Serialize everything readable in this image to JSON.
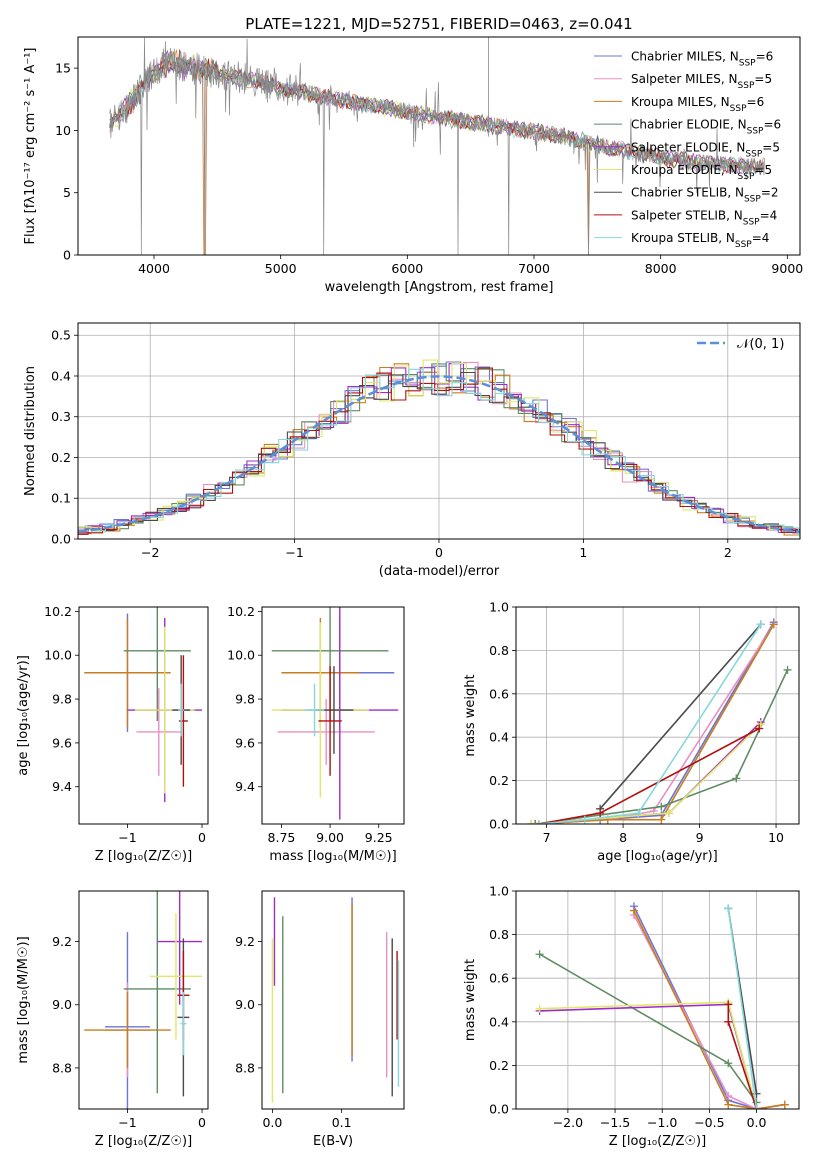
{
  "figure_title": "PLATE=1221, MJD=52751, FIBERID=0463, z=0.041",
  "colors": {
    "Chabrier MILES": "#6a75d8",
    "Salpeter MILES": "#ea8fc2",
    "Kroupa MILES": "#c87e1e",
    "Chabrier ELODIE": "#5f8c63",
    "Salpeter ELODIE": "#a02cc8",
    "Kroupa ELODIE": "#dfe86a",
    "Chabrier STELIB": "#4a4a4a",
    "Salpeter STELIB": "#b01010",
    "Kroupa STELIB": "#86d8de",
    "data": "#888888",
    "normal": "#5b8fd8"
  },
  "chart_data": [
    {
      "id": "spectrum",
      "type": "line",
      "xlabel": "wavelength [Angstrom, rest frame]",
      "ylabel": "Flux [fλ10⁻¹⁷ erg cm⁻² s⁻¹ A⁻¹]",
      "xlim": [
        3400,
        9100
      ],
      "ylim": [
        0,
        17.5
      ],
      "xticks": [
        4000,
        5000,
        6000,
        7000,
        8000,
        9000
      ],
      "yticks": [
        0,
        5,
        10,
        15
      ],
      "legend_position": "upper-right",
      "legend": [
        {
          "name": "Chabrier MILES",
          "nssp": "6"
        },
        {
          "name": "Salpeter MILES",
          "nssp": "5"
        },
        {
          "name": "Kroupa MILES",
          "nssp": "6"
        },
        {
          "name": "Chabrier ELODIE",
          "nssp": "6"
        },
        {
          "name": "Salpeter ELODIE",
          "nssp": "5"
        },
        {
          "name": "Kroupa ELODIE",
          "nssp": "5"
        },
        {
          "name": "Chabrier STELIB",
          "nssp": "2"
        },
        {
          "name": "Salpeter STELIB",
          "nssp": "4"
        },
        {
          "name": "Kroupa STELIB",
          "nssp": "4"
        }
      ],
      "continuum": {
        "x": [
          3650,
          3800,
          3950,
          4100,
          4300,
          4500,
          4800,
          5000,
          5300,
          5600,
          6000,
          6400,
          6800,
          7200,
          7600,
          8000,
          8400,
          8800
        ],
        "y": [
          10.5,
          12.0,
          14.2,
          15.5,
          15.0,
          14.6,
          14.0,
          13.4,
          12.8,
          12.2,
          11.5,
          10.8,
          10.2,
          9.6,
          8.6,
          7.8,
          7.3,
          7.1
        ]
      },
      "dips": [
        [
          3900,
          0
        ],
        [
          4400,
          0
        ],
        [
          5340,
          0
        ],
        [
          6400,
          0
        ],
        [
          6800,
          0
        ],
        [
          7430,
          0
        ]
      ]
    },
    {
      "id": "residuals",
      "type": "histogram",
      "xlabel": "(data-model)/error",
      "ylabel": "Normed distribution",
      "xlim": [
        -2.5,
        2.5
      ],
      "ylim": [
        0,
        0.53
      ],
      "xticks": [
        -2,
        -1,
        0,
        1,
        2
      ],
      "yticks": [
        0.0,
        0.1,
        0.2,
        0.3,
        0.4,
        0.5
      ],
      "normal_label": "𝒩(0, 1)",
      "bin_width": 0.1
    },
    {
      "id": "z_vs_age",
      "type": "errorbar",
      "xlabel": "Z [log₁₀(Z/Z☉)]",
      "ylabel": "age  [log₁₀(age/yr)]",
      "xlim": [
        -1.65,
        0.08
      ],
      "ylim": [
        9.23,
        10.22
      ],
      "xticks": [
        -1,
        0
      ],
      "yticks": [
        9.4,
        9.6,
        9.8,
        10.0,
        10.2
      ],
      "points": [
        {
          "m": "Chabrier MILES",
          "x": -1.0,
          "y": 9.92,
          "xe": 0.5,
          "ye": 0.27
        },
        {
          "m": "Salpeter MILES",
          "x": -0.58,
          "y": 9.65,
          "xe": 0.3,
          "ye": 0.2
        },
        {
          "m": "Kroupa MILES",
          "x": -1.0,
          "y": 9.92,
          "xe": 0.58,
          "ye": 0.25
        },
        {
          "m": "Chabrier ELODIE",
          "x": -0.6,
          "y": 10.02,
          "xe": 0.45,
          "ye": 0.32
        },
        {
          "m": "Salpeter ELODIE",
          "x": -0.5,
          "y": 9.75,
          "xe": 0.5,
          "ye": 0.42
        },
        {
          "m": "Kroupa ELODIE",
          "x": -0.5,
          "y": 9.75,
          "xe": 0.4,
          "ye": 0.38
        },
        {
          "m": "Chabrier STELIB",
          "x": -0.28,
          "y": 9.75,
          "xe": 0.12,
          "ye": 0.25
        },
        {
          "m": "Salpeter STELIB",
          "x": -0.25,
          "y": 9.7,
          "xe": 0.06,
          "ye": 0.3
        },
        {
          "m": "Kroupa STELIB",
          "x": -0.28,
          "y": 9.75,
          "xe": 0.04,
          "ye": 0.12
        }
      ]
    },
    {
      "id": "mass_vs_age",
      "type": "errorbar",
      "xlabel": "mass [log₁₀(M/M☉)]",
      "ylabel": "",
      "xlim": [
        8.65,
        9.38
      ],
      "ylim": [
        9.23,
        10.22
      ],
      "xticks": [
        8.75,
        9.0,
        9.25
      ],
      "yticks": [
        9.4,
        9.6,
        9.8,
        10.0,
        10.2
      ],
      "points": [
        {
          "m": "Chabrier MILES",
          "x": 9.05,
          "y": 9.92,
          "xe": 0.28,
          "ye": 0.25
        },
        {
          "m": "Salpeter MILES",
          "x": 8.98,
          "y": 9.65,
          "xe": 0.25,
          "ye": 0.15
        },
        {
          "m": "Kroupa MILES",
          "x": 8.95,
          "y": 9.92,
          "xe": 0.2,
          "ye": 0.25
        },
        {
          "m": "Chabrier ELODIE",
          "x": 9.0,
          "y": 10.02,
          "xe": 0.3,
          "ye": 0.32
        },
        {
          "m": "Salpeter ELODIE",
          "x": 9.05,
          "y": 9.75,
          "xe": 0.3,
          "ye": 0.5
        },
        {
          "m": "Kroupa ELODIE",
          "x": 8.95,
          "y": 9.75,
          "xe": 0.25,
          "ye": 0.4
        },
        {
          "m": "Chabrier STELIB",
          "x": 9.02,
          "y": 9.75,
          "xe": 0.1,
          "ye": 0.2
        },
        {
          "m": "Salpeter STELIB",
          "x": 9.0,
          "y": 9.7,
          "xe": 0.06,
          "ye": 0.25
        },
        {
          "m": "Kroupa STELIB",
          "x": 8.92,
          "y": 9.75,
          "xe": 0.05,
          "ye": 0.12
        }
      ]
    },
    {
      "id": "age_vs_weight",
      "type": "line",
      "xlabel": "age  [log₁₀(age/yr)]",
      "ylabel": "mass weight",
      "xlim": [
        6.6,
        10.3
      ],
      "ylim": [
        0,
        1.0
      ],
      "xticks": [
        7,
        8,
        9,
        10
      ],
      "yticks": [
        0.0,
        0.2,
        0.4,
        0.6,
        0.8,
        1.0
      ],
      "series": [
        {
          "name": "Chabrier MILES",
          "x": [
            6.85,
            7.7,
            8.5,
            9.97
          ],
          "y": [
            0.0,
            0.02,
            0.04,
            0.93
          ]
        },
        {
          "name": "Salpeter MILES",
          "x": [
            6.85,
            7.8,
            8.4,
            9.97
          ],
          "y": [
            0.0,
            0.02,
            0.06,
            0.92
          ]
        },
        {
          "name": "Kroupa MILES",
          "x": [
            6.85,
            7.8,
            8.5,
            9.97
          ],
          "y": [
            0.0,
            0.02,
            0.02,
            0.92
          ]
        },
        {
          "name": "Chabrier ELODIE",
          "x": [
            6.85,
            8.5,
            9.48,
            10.15
          ],
          "y": [
            0.0,
            0.08,
            0.21,
            0.71
          ]
        },
        {
          "name": "Salpeter ELODIE",
          "x": [
            6.8,
            8.6,
            9.8
          ],
          "y": [
            0.0,
            0.05,
            0.47
          ]
        },
        {
          "name": "Kroupa ELODIE",
          "x": [
            6.8,
            8.6,
            9.8
          ],
          "y": [
            0.0,
            0.05,
            0.46
          ]
        },
        {
          "name": "Chabrier STELIB",
          "x": [
            7.7,
            9.8
          ],
          "y": [
            0.07,
            0.92
          ]
        },
        {
          "name": "Salpeter STELIB",
          "x": [
            6.9,
            7.7,
            9.78
          ],
          "y": [
            0.0,
            0.05,
            0.44
          ]
        },
        {
          "name": "Kroupa STELIB",
          "x": [
            6.9,
            7.5,
            8.2,
            9.8
          ],
          "y": [
            0.0,
            0.02,
            0.05,
            0.92
          ]
        }
      ]
    },
    {
      "id": "z_vs_mass",
      "type": "errorbar",
      "xlabel": "Z [log₁₀(Z/Z☉)]",
      "ylabel": "mass [log₁₀(M/M☉)]",
      "xlim": [
        -1.65,
        0.08
      ],
      "ylim": [
        8.67,
        9.36
      ],
      "xticks": [
        -1,
        0
      ],
      "yticks": [
        8.8,
        9.0,
        9.2
      ],
      "points": [
        {
          "m": "Chabrier MILES",
          "x": -1.0,
          "y": 8.93,
          "xe": 0.3,
          "ye": 0.3
        },
        {
          "m": "Salpeter MILES",
          "x": -1.0,
          "y": 8.92,
          "xe": 0.3,
          "ye": 0.15
        },
        {
          "m": "Kroupa MILES",
          "x": -1.0,
          "y": 8.92,
          "xe": 0.58,
          "ye": 0.12
        },
        {
          "m": "Chabrier ELODIE",
          "x": -0.6,
          "y": 9.05,
          "xe": 0.45,
          "ye": 0.33
        },
        {
          "m": "Salpeter ELODIE",
          "x": -0.3,
          "y": 9.2,
          "xe": 0.3,
          "ye": 0.2
        },
        {
          "m": "Kroupa ELODIE",
          "x": -0.35,
          "y": 9.09,
          "xe": 0.35,
          "ye": 0.2
        },
        {
          "m": "Chabrier STELIB",
          "x": -0.25,
          "y": 8.96,
          "xe": 0.08,
          "ye": 0.25
        },
        {
          "m": "Salpeter STELIB",
          "x": -0.25,
          "y": 9.03,
          "xe": 0.08,
          "ye": 0.14
        },
        {
          "m": "Kroupa STELIB",
          "x": -0.25,
          "y": 8.94,
          "xe": 0.04,
          "ye": 0.1
        }
      ]
    },
    {
      "id": "ebv_vs_mass",
      "type": "errorbar",
      "xlabel": "E(B-V)",
      "ylabel": "",
      "xlim": [
        -0.015,
        0.19
      ],
      "ylim": [
        8.67,
        9.36
      ],
      "xticks": [
        0.0,
        0.1
      ],
      "yticks": [
        8.8,
        9.0,
        9.2
      ],
      "points": [
        {
          "m": "Chabrier MILES",
          "x": 0.115,
          "y": 9.08,
          "xe": 0,
          "ye": 0.26
        },
        {
          "m": "Salpeter MILES",
          "x": 0.165,
          "y": 9.0,
          "xe": 0,
          "ye": 0.23
        },
        {
          "m": "Kroupa MILES",
          "x": 0.115,
          "y": 9.08,
          "xe": 0,
          "ye": 0.24
        },
        {
          "m": "Chabrier ELODIE",
          "x": 0.015,
          "y": 9.0,
          "xe": 0,
          "ye": 0.28
        },
        {
          "m": "Salpeter ELODIE",
          "x": 0.003,
          "y": 9.2,
          "xe": 0,
          "ye": 0.14
        },
        {
          "m": "Kroupa ELODIE",
          "x": 0.0,
          "y": 8.95,
          "xe": 0,
          "ye": 0.26
        },
        {
          "m": "Chabrier STELIB",
          "x": 0.173,
          "y": 8.96,
          "xe": 0,
          "ye": 0.25
        },
        {
          "m": "Salpeter STELIB",
          "x": 0.18,
          "y": 9.03,
          "xe": 0,
          "ye": 0.14
        },
        {
          "m": "Kroupa STELIB",
          "x": 0.182,
          "y": 8.94,
          "xe": 0,
          "ye": 0.2
        }
      ]
    },
    {
      "id": "z_vs_weight",
      "type": "line",
      "xlabel": "Z [log₁₀(Z/Z☉)]",
      "ylabel": "mass weight",
      "xlim": [
        -2.55,
        0.45
      ],
      "ylim": [
        0,
        1.0
      ],
      "xticks": [
        -2.0,
        -1.5,
        -1.0,
        -0.5,
        0.0
      ],
      "yticks": [
        0.0,
        0.2,
        0.4,
        0.6,
        0.8,
        1.0
      ],
      "series": [
        {
          "name": "Chabrier MILES",
          "x": [
            -1.3,
            -0.3,
            0.0,
            0.3
          ],
          "y": [
            0.93,
            0.04,
            0.0,
            0.02
          ]
        },
        {
          "name": "Salpeter MILES",
          "x": [
            -1.3,
            -0.3,
            0.0,
            0.3
          ],
          "y": [
            0.89,
            0.06,
            0.0,
            0.02
          ]
        },
        {
          "name": "Kroupa MILES",
          "x": [
            -1.3,
            -0.3,
            0.0,
            0.3
          ],
          "y": [
            0.91,
            0.02,
            0.0,
            0.02
          ]
        },
        {
          "name": "Chabrier ELODIE",
          "x": [
            -2.3,
            -0.3,
            0.0
          ],
          "y": [
            0.71,
            0.21,
            0.03
          ]
        },
        {
          "name": "Salpeter ELODIE",
          "x": [
            -2.3,
            -0.3,
            0.0
          ],
          "y": [
            0.45,
            0.48,
            0.0
          ]
        },
        {
          "name": "Kroupa ELODIE",
          "x": [
            -2.3,
            -0.3,
            0.0
          ],
          "y": [
            0.46,
            0.49,
            0.0
          ]
        },
        {
          "name": "Chabrier STELIB",
          "x": [
            -0.3,
            0.0
          ],
          "y": [
            0.92,
            0.07
          ]
        },
        {
          "name": "Salpeter STELIB",
          "x": [
            -0.3,
            -0.3,
            0.0
          ],
          "y": [
            0.48,
            0.4,
            0.0
          ]
        },
        {
          "name": "Kroupa STELIB",
          "x": [
            -0.3,
            0.0
          ],
          "y": [
            0.92,
            0.0
          ]
        }
      ]
    }
  ]
}
